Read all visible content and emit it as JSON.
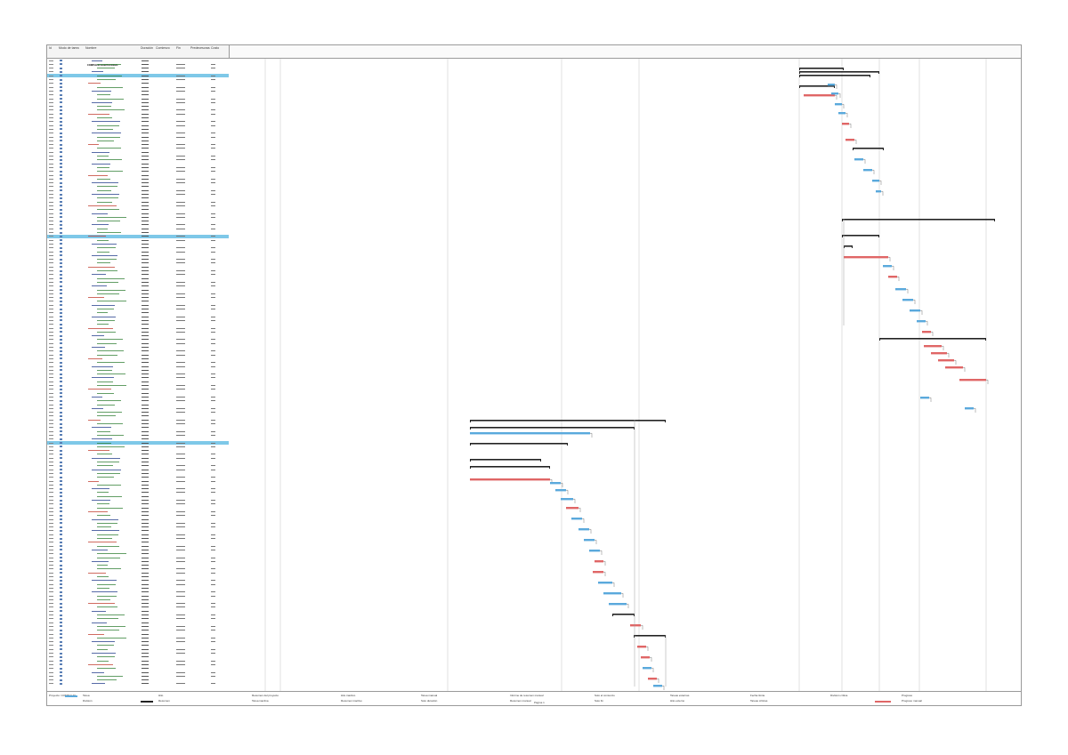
{
  "header": {
    "columns": [
      "Id",
      "Modo de tarea",
      "Nombre",
      "Duración",
      "Comienzo",
      "Fin",
      "Predecesoras",
      "Costo"
    ]
  },
  "project": {
    "name": "COMPLEJO HABITACIONAL"
  },
  "legend": {
    "items": [
      "Tarea",
      "División",
      "Hito",
      "Resumen",
      "Resumen del proyecto",
      "Tarea inactiva",
      "Hito inactivo",
      "Resumen inactivo",
      "Tarea manual",
      "Solo duración",
      "Informe de resumen manual",
      "Resumen manual",
      "Solo el comienzo",
      "Solo fin",
      "Tareas externas",
      "Hito externo",
      "Fecha límite",
      "Tareas críticas",
      "División crítica",
      "Progreso",
      "Progreso manual"
    ],
    "project_label": "Proyecto: COMPLEJO",
    "page": "Página 1"
  },
  "colors": {
    "task_blue": "#5aa9dc",
    "critical_red": "#e06666",
    "summary_black": "#222222",
    "project_band": "#7ec8e8"
  }
}
